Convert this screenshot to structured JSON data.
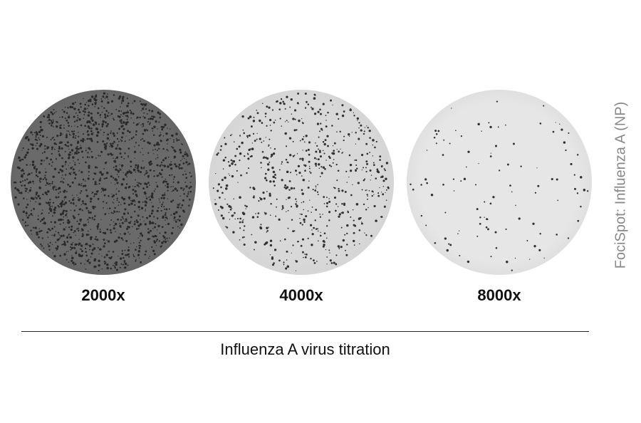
{
  "wells": [
    {
      "label": "2000x",
      "base": "#6a6a6a",
      "dots": 1600
    },
    {
      "label": "4000x",
      "base": "#d8d8d8",
      "dots": 650
    },
    {
      "label": "8000x",
      "base": "#e6e6e6",
      "dots": 110
    }
  ],
  "xlabel": "Influenza A virus titration",
  "side_label": "FociSpot: Influenza A (NP)"
}
